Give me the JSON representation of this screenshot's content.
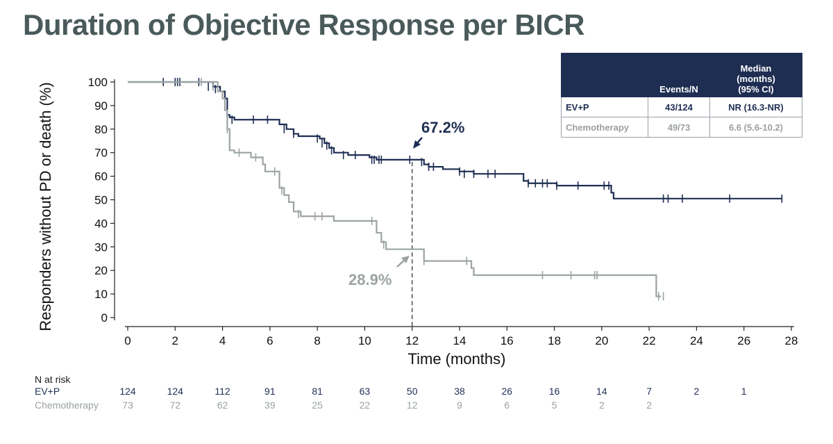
{
  "title": "Duration of Objective Response per BICR",
  "chart_data": {
    "type": "line",
    "xlabel": "Time (months)",
    "ylabel": "Responders without PD or death (%)",
    "xlim": [
      0,
      28
    ],
    "ylim": [
      0,
      100
    ],
    "xticks": [
      0,
      2,
      4,
      6,
      8,
      10,
      12,
      14,
      16,
      18,
      20,
      22,
      24,
      26,
      28
    ],
    "yticks": [
      0,
      10,
      20,
      30,
      40,
      50,
      60,
      70,
      80,
      90,
      100
    ],
    "reference_line_x": 12,
    "series": [
      {
        "name": "EV+P",
        "color": "#1e2e52",
        "steps": [
          [
            0,
            100
          ],
          [
            3.3,
            100
          ],
          [
            3.6,
            98
          ],
          [
            3.9,
            96
          ],
          [
            4.1,
            93
          ],
          [
            4.2,
            86
          ],
          [
            4.3,
            85
          ],
          [
            4.5,
            84
          ],
          [
            6.2,
            84
          ],
          [
            6.4,
            82
          ],
          [
            6.7,
            80
          ],
          [
            7.0,
            78
          ],
          [
            7.2,
            77
          ],
          [
            8.0,
            77
          ],
          [
            8.1,
            76
          ],
          [
            8.3,
            74
          ],
          [
            8.5,
            72
          ],
          [
            8.7,
            70
          ],
          [
            9.3,
            69
          ],
          [
            10.2,
            68
          ],
          [
            10.5,
            67
          ],
          [
            12.4,
            67
          ],
          [
            12.5,
            65
          ],
          [
            12.7,
            64
          ],
          [
            13.3,
            63
          ],
          [
            14.0,
            62
          ],
          [
            14.6,
            61
          ],
          [
            16.5,
            61
          ],
          [
            16.7,
            58
          ],
          [
            16.9,
            57
          ],
          [
            18.1,
            56
          ],
          [
            20.3,
            56
          ],
          [
            20.4,
            53
          ],
          [
            20.5,
            50.5
          ],
          [
            27.6,
            50.5
          ]
        ],
        "censors": [
          [
            1.5,
            100
          ],
          [
            2.0,
            100
          ],
          [
            2.1,
            100
          ],
          [
            2.2,
            100
          ],
          [
            3.0,
            100
          ],
          [
            3.4,
            98
          ],
          [
            3.7,
            97
          ],
          [
            4.2,
            86
          ],
          [
            4.4,
            84
          ],
          [
            5.3,
            84
          ],
          [
            5.9,
            84
          ],
          [
            6.6,
            80
          ],
          [
            7.0,
            78
          ],
          [
            8.0,
            76
          ],
          [
            8.2,
            74
          ],
          [
            8.4,
            73
          ],
          [
            8.6,
            71
          ],
          [
            9.1,
            69
          ],
          [
            9.6,
            69
          ],
          [
            10.3,
            67
          ],
          [
            10.4,
            67
          ],
          [
            10.6,
            67
          ],
          [
            10.7,
            67
          ],
          [
            11.9,
            67
          ],
          [
            12.4,
            66
          ],
          [
            12.7,
            64
          ],
          [
            12.9,
            64
          ],
          [
            14.0,
            62
          ],
          [
            14.2,
            61
          ],
          [
            14.6,
            61
          ],
          [
            15.2,
            61
          ],
          [
            15.5,
            61
          ],
          [
            16.9,
            57
          ],
          [
            17.2,
            57
          ],
          [
            17.5,
            57
          ],
          [
            17.7,
            57
          ],
          [
            18.1,
            56
          ],
          [
            19.0,
            56
          ],
          [
            20.1,
            56
          ],
          [
            20.3,
            56
          ],
          [
            22.6,
            50.5
          ],
          [
            22.8,
            50.5
          ],
          [
            23.4,
            50.5
          ],
          [
            25.4,
            50.5
          ],
          [
            27.6,
            50.5
          ]
        ],
        "annotation": {
          "text": "67.2%",
          "x": 12,
          "y": 67.2
        }
      },
      {
        "name": "Chemotherapy",
        "color": "#9ca3a3",
        "steps": [
          [
            0,
            100
          ],
          [
            3.4,
            100
          ],
          [
            3.8,
            96
          ],
          [
            4.0,
            93
          ],
          [
            4.1,
            88
          ],
          [
            4.2,
            80
          ],
          [
            4.3,
            71
          ],
          [
            4.5,
            70
          ],
          [
            5.2,
            68
          ],
          [
            5.7,
            65
          ],
          [
            5.8,
            62
          ],
          [
            6.3,
            62
          ],
          [
            6.4,
            55
          ],
          [
            6.6,
            52
          ],
          [
            6.8,
            49
          ],
          [
            7.0,
            45
          ],
          [
            7.3,
            43
          ],
          [
            8.7,
            41
          ],
          [
            10.5,
            36
          ],
          [
            10.7,
            32
          ],
          [
            10.9,
            29
          ],
          [
            12.4,
            29
          ],
          [
            12.5,
            24
          ],
          [
            14.3,
            24
          ],
          [
            14.5,
            21
          ],
          [
            14.6,
            18
          ],
          [
            22.2,
            18
          ],
          [
            22.3,
            9
          ],
          [
            22.5,
            9
          ]
        ],
        "censors": [
          [
            3.1,
            100
          ],
          [
            3.6,
            98
          ],
          [
            4.2,
            80
          ],
          [
            4.7,
            70
          ],
          [
            5.4,
            68
          ],
          [
            6.2,
            62
          ],
          [
            6.5,
            54
          ],
          [
            7.2,
            44
          ],
          [
            7.9,
            43
          ],
          [
            8.2,
            43
          ],
          [
            10.3,
            41
          ],
          [
            10.5,
            38
          ],
          [
            10.8,
            31
          ],
          [
            12.5,
            24
          ],
          [
            14.3,
            24
          ],
          [
            17.5,
            18
          ],
          [
            18.7,
            18
          ],
          [
            19.7,
            18
          ],
          [
            19.8,
            18
          ],
          [
            22.4,
            9
          ],
          [
            22.6,
            9
          ]
        ],
        "annotation": {
          "text": "28.9%",
          "x": 12,
          "y": 28.9
        }
      }
    ]
  },
  "legend_table": {
    "headers": [
      "",
      "Events/N",
      "Median (months) (95% CI)"
    ],
    "header_median_lines": [
      "Median",
      "(months)",
      "(95% CI)"
    ],
    "rows": [
      {
        "arm": "EV+P",
        "events": "43/124",
        "median": "NR (16.3-NR)"
      },
      {
        "arm": "Chemotherapy",
        "events": "49/73",
        "median": "6.6 (5.6-10.2)"
      }
    ]
  },
  "risk_table": {
    "title": "N at risk",
    "times": [
      0,
      2,
      4,
      6,
      8,
      10,
      12,
      14,
      16,
      18,
      20,
      22,
      24,
      26
    ],
    "evp_label": "EV+P",
    "evp": [
      "124",
      "124",
      "112",
      "91",
      "81",
      "63",
      "50",
      "38",
      "26",
      "16",
      "14",
      "7",
      "2",
      "1"
    ],
    "chemo_label": "Chemotherapy",
    "chemo": [
      "73",
      "72",
      "62",
      "39",
      "25",
      "22",
      "12",
      "9",
      "6",
      "5",
      "2",
      "2",
      "",
      ""
    ]
  }
}
